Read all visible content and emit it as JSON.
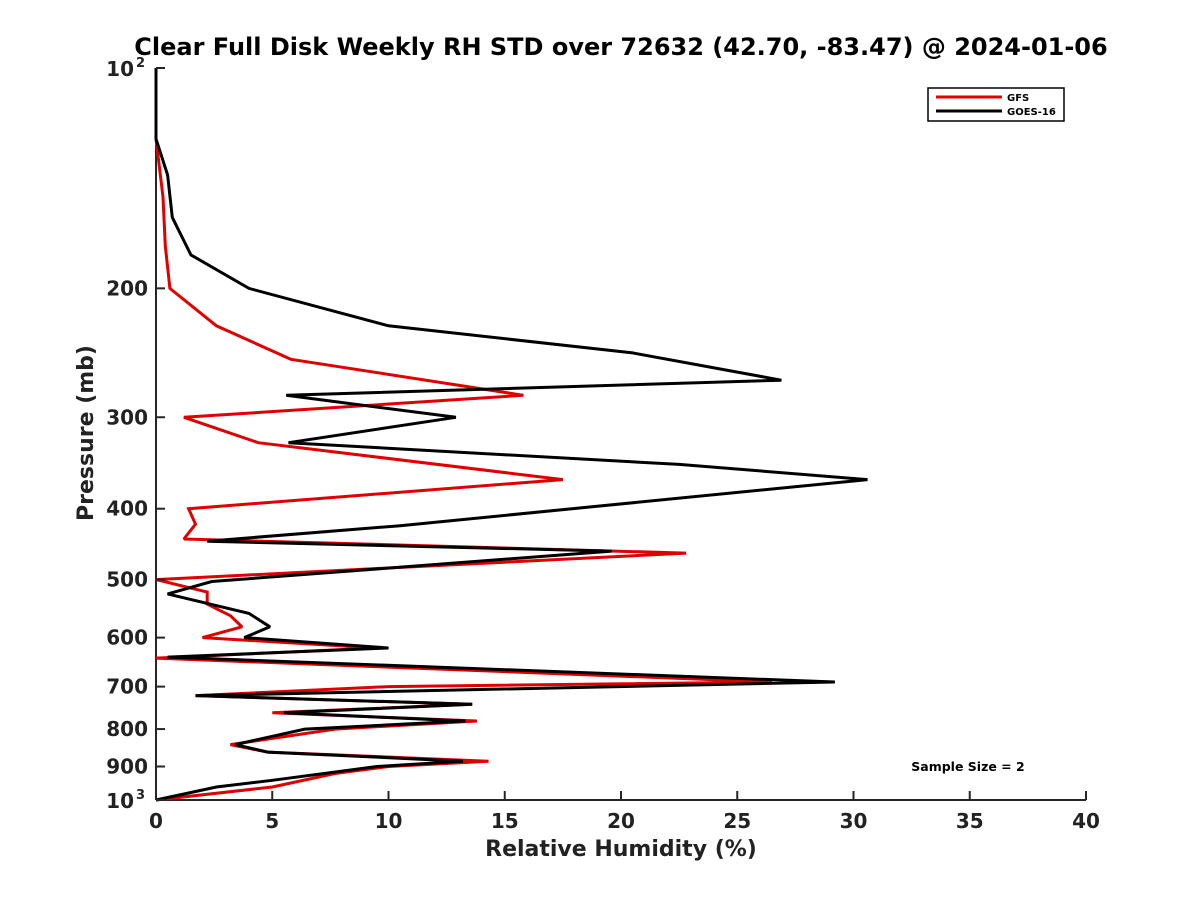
{
  "chart_data": {
    "type": "line",
    "title": "Clear Full Disk Weekly RH STD over 72632 (42.70, -83.47) @ 2024-01-06",
    "xlabel": "Relative Humidity (%)",
    "ylabel": "Pressure (mb)",
    "xlim": [
      0,
      40
    ],
    "ylim": [
      100,
      1000
    ],
    "y_scale": "log",
    "y_reversed": true,
    "grid": false,
    "legend_placement": "top-right",
    "x_ticks": [
      "0",
      "5",
      "10",
      "15",
      "20",
      "25",
      "30",
      "35",
      "40"
    ],
    "y_ticks": [
      {
        "value": 100,
        "base": "10",
        "exp": "2"
      },
      {
        "value": 200,
        "label": "200"
      },
      {
        "value": 300,
        "label": "300"
      },
      {
        "value": 400,
        "label": "400"
      },
      {
        "value": 500,
        "label": "500"
      },
      {
        "value": 600,
        "label": "600"
      },
      {
        "value": 700,
        "label": "700"
      },
      {
        "value": 800,
        "label": "800"
      },
      {
        "value": 900,
        "label": "900"
      },
      {
        "value": 1000,
        "base": "10",
        "exp": "3"
      }
    ],
    "annotations": [
      "Sample Size = 2"
    ],
    "series": [
      {
        "name": "GFS",
        "color": "#e00000",
        "points": [
          [
            0,
            100
          ],
          [
            0,
            125
          ],
          [
            0.3,
            150
          ],
          [
            0.4,
            175
          ],
          [
            0.6,
            200
          ],
          [
            2.6,
            225
          ],
          [
            5.8,
            250
          ],
          [
            15.8,
            280
          ],
          [
            1.2,
            300
          ],
          [
            4.4,
            325
          ],
          [
            17.5,
            365
          ],
          [
            1.4,
            400
          ],
          [
            1.7,
            420
          ],
          [
            1.2,
            440
          ],
          [
            22.8,
            460
          ],
          [
            0,
            500
          ],
          [
            2.2,
            520
          ],
          [
            2.2,
            540
          ],
          [
            3.2,
            560
          ],
          [
            3.7,
            580
          ],
          [
            2.0,
            600
          ],
          [
            9.5,
            620
          ],
          [
            0,
            640
          ],
          [
            26.5,
            690
          ],
          [
            10.0,
            700
          ],
          [
            1.7,
            720
          ],
          [
            13.6,
            740
          ],
          [
            5.0,
            760
          ],
          [
            13.8,
            780
          ],
          [
            7.7,
            800
          ],
          [
            3.2,
            840
          ],
          [
            4.8,
            860
          ],
          [
            14.3,
            885
          ],
          [
            10.0,
            900
          ],
          [
            7.7,
            920
          ],
          [
            5.0,
            960
          ],
          [
            0,
            1000
          ]
        ]
      },
      {
        "name": "GOES-16",
        "color": "#000000",
        "points": [
          [
            0,
            100
          ],
          [
            0,
            125
          ],
          [
            0.5,
            140
          ],
          [
            0.7,
            160
          ],
          [
            1.5,
            180
          ],
          [
            4.0,
            200
          ],
          [
            10.0,
            225
          ],
          [
            20.5,
            245
          ],
          [
            26.9,
            267
          ],
          [
            5.6,
            280
          ],
          [
            12.9,
            300
          ],
          [
            5.7,
            325
          ],
          [
            22.5,
            348
          ],
          [
            30.6,
            365
          ],
          [
            10.5,
            422
          ],
          [
            2.2,
            443
          ],
          [
            19.6,
            457
          ],
          [
            2.4,
            503
          ],
          [
            0.5,
            523
          ],
          [
            4.0,
            556
          ],
          [
            4.9,
            580
          ],
          [
            3.8,
            600
          ],
          [
            10.0,
            620
          ],
          [
            0.5,
            638
          ],
          [
            29.2,
            690
          ],
          [
            1.7,
            720
          ],
          [
            13.6,
            740
          ],
          [
            5.5,
            760
          ],
          [
            13.3,
            780
          ],
          [
            6.4,
            800
          ],
          [
            3.4,
            840
          ],
          [
            4.8,
            860
          ],
          [
            13.2,
            885
          ],
          [
            9.5,
            900
          ],
          [
            5.0,
            940
          ],
          [
            2.6,
            960
          ],
          [
            0,
            1000
          ]
        ]
      }
    ]
  }
}
